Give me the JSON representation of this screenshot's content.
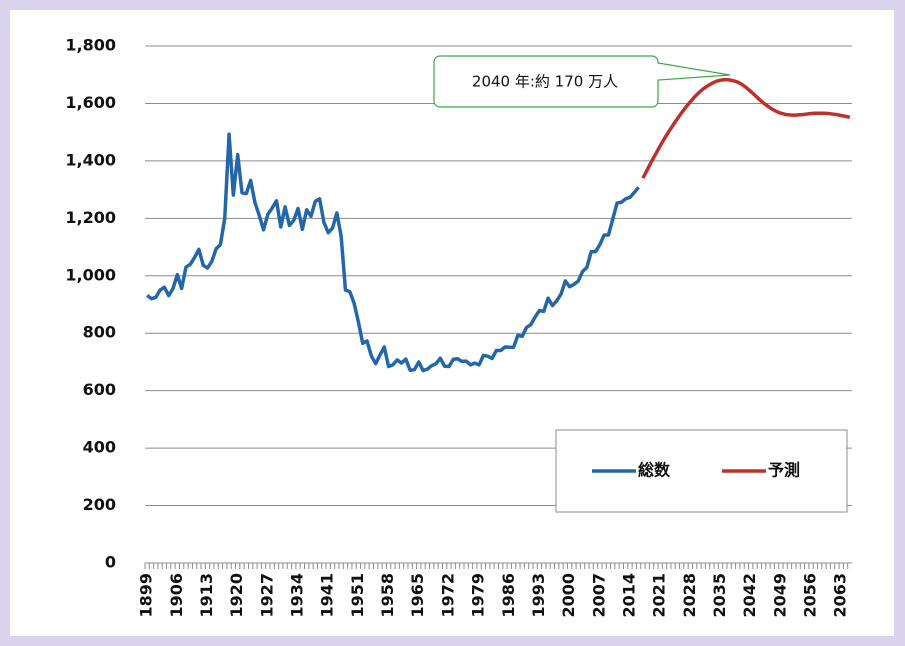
{
  "chart_data": {
    "type": "line",
    "annotation": "2040 年:約 170 万人",
    "categories": [
      "1899",
      null,
      null,
      null,
      null,
      null,
      null,
      "1906",
      null,
      null,
      null,
      null,
      null,
      null,
      "1913",
      null,
      null,
      null,
      null,
      null,
      null,
      "1920",
      null,
      null,
      null,
      null,
      null,
      null,
      "1927",
      null,
      null,
      null,
      null,
      null,
      null,
      "1934",
      null,
      null,
      null,
      null,
      null,
      null,
      "1941",
      null,
      null,
      null,
      null,
      null,
      null,
      "1951",
      null,
      null,
      null,
      null,
      null,
      null,
      "1958",
      null,
      null,
      null,
      null,
      null,
      null,
      "1965",
      null,
      null,
      null,
      null,
      null,
      null,
      "1972",
      null,
      null,
      null,
      null,
      null,
      null,
      "1979",
      null,
      null,
      null,
      null,
      null,
      null,
      "1986",
      null,
      null,
      null,
      null,
      null,
      null,
      "1993",
      null,
      null,
      null,
      null,
      null,
      null,
      "2000",
      null,
      null,
      null,
      null,
      null,
      null,
      "2007",
      null,
      null,
      null,
      null,
      null,
      null,
      "2014",
      null,
      null,
      null,
      null,
      null,
      null,
      "2021",
      null,
      null,
      null,
      null,
      null,
      null,
      "2028",
      null,
      null,
      null,
      null,
      null,
      null,
      "2035",
      null,
      null,
      null,
      null,
      null,
      null,
      "2042",
      null,
      null,
      null,
      null,
      null,
      null,
      "2049",
      null,
      null,
      null,
      null,
      null,
      null,
      "2056",
      null,
      null,
      null,
      null,
      null,
      null,
      "2063",
      null,
      null
    ],
    "series": [
      {
        "name": "総数",
        "color": "#2467a8",
        "values": [
          932,
          920,
          925,
          950,
          960,
          931,
          956,
          1004,
          956,
          1030,
          1040,
          1064,
          1092,
          1037,
          1027,
          1050,
          1094,
          1109,
          1200,
          1493,
          1281,
          1422,
          1289,
          1286,
          1332,
          1255,
          1210,
          1160,
          1214,
          1236,
          1261,
          1170,
          1240,
          1175,
          1193,
          1234,
          1162,
          1230,
          1207,
          1259,
          1268,
          1186,
          1150,
          1166,
          1219,
          1138,
          950,
          945,
          905,
          839,
          765,
          773,
          721,
          694,
          724,
          752,
          684,
          690,
          707,
          696,
          710,
          671,
          673,
          700,
          670,
          675,
          687,
          694,
          713,
          685,
          684,
          709,
          711,
          702,
          703,
          690,
          696,
          690,
          723,
          720,
          712,
          740,
          740,
          752,
          751,
          751,
          793,
          789,
          820,
          830,
          857,
          879,
          876,
          922,
          896,
          913,
          936,
          982,
          962,
          970,
          982,
          1015,
          1029,
          1084,
          1084,
          1108,
          1142,
          1142,
          1197,
          1253,
          1256,
          1268,
          1273,
          1290,
          1308,
          null,
          null,
          null,
          null,
          null,
          null,
          null,
          null,
          null,
          null,
          null,
          null,
          null,
          null,
          null,
          null,
          null,
          null,
          null,
          null,
          null,
          null,
          null,
          null,
          null,
          null,
          null,
          null,
          null,
          null,
          null,
          null,
          null,
          null,
          null,
          null,
          null,
          null,
          null,
          null,
          null,
          null,
          null,
          null,
          null,
          null,
          null,
          null,
          null
        ]
      },
      {
        "name": "予測",
        "color": "#c0302a",
        "values": [
          null,
          null,
          null,
          null,
          null,
          null,
          null,
          null,
          null,
          null,
          null,
          null,
          null,
          null,
          null,
          null,
          null,
          null,
          null,
          null,
          null,
          null,
          null,
          null,
          null,
          null,
          null,
          null,
          null,
          null,
          null,
          null,
          null,
          null,
          null,
          null,
          null,
          null,
          null,
          null,
          null,
          null,
          null,
          null,
          null,
          null,
          null,
          null,
          null,
          null,
          null,
          null,
          null,
          null,
          null,
          null,
          null,
          null,
          null,
          null,
          null,
          null,
          null,
          null,
          null,
          null,
          null,
          null,
          null,
          null,
          null,
          null,
          null,
          null,
          null,
          null,
          null,
          null,
          null,
          null,
          null,
          null,
          null,
          null,
          null,
          null,
          null,
          null,
          null,
          null,
          null,
          null,
          null,
          null,
          null,
          null,
          null,
          null,
          null,
          null,
          null,
          null,
          null,
          null,
          null,
          null,
          null,
          null,
          null,
          null,
          null,
          null,
          null,
          null,
          null,
          1340,
          1369,
          1398,
          1425,
          1452,
          1478,
          1502,
          1525,
          1547,
          1568,
          1588,
          1606,
          1623,
          1638,
          1651,
          1661,
          1670,
          1677,
          1681,
          1683,
          1682,
          1679,
          1674,
          1666,
          1655,
          1642,
          1628,
          1614,
          1601,
          1590,
          1580,
          1572,
          1566,
          1562,
          1560,
          1559,
          1560,
          1561,
          1563,
          1565,
          1566,
          1566,
          1566,
          1565,
          1563,
          1561,
          1558,
          1555,
          1552
        ]
      }
    ],
    "ylim": [
      0,
      1800
    ],
    "yticks": [
      0,
      200,
      400,
      600,
      800,
      {
        "value": 1000,
        "label": "1,000"
      },
      {
        "value": 1200,
        "label": "1,200"
      },
      {
        "value": 1400,
        "label": "1,400"
      },
      {
        "value": 1600,
        "label": "1,600"
      },
      {
        "value": 1800,
        "label": "1,800"
      }
    ],
    "grid": true,
    "legend": "lower right"
  }
}
